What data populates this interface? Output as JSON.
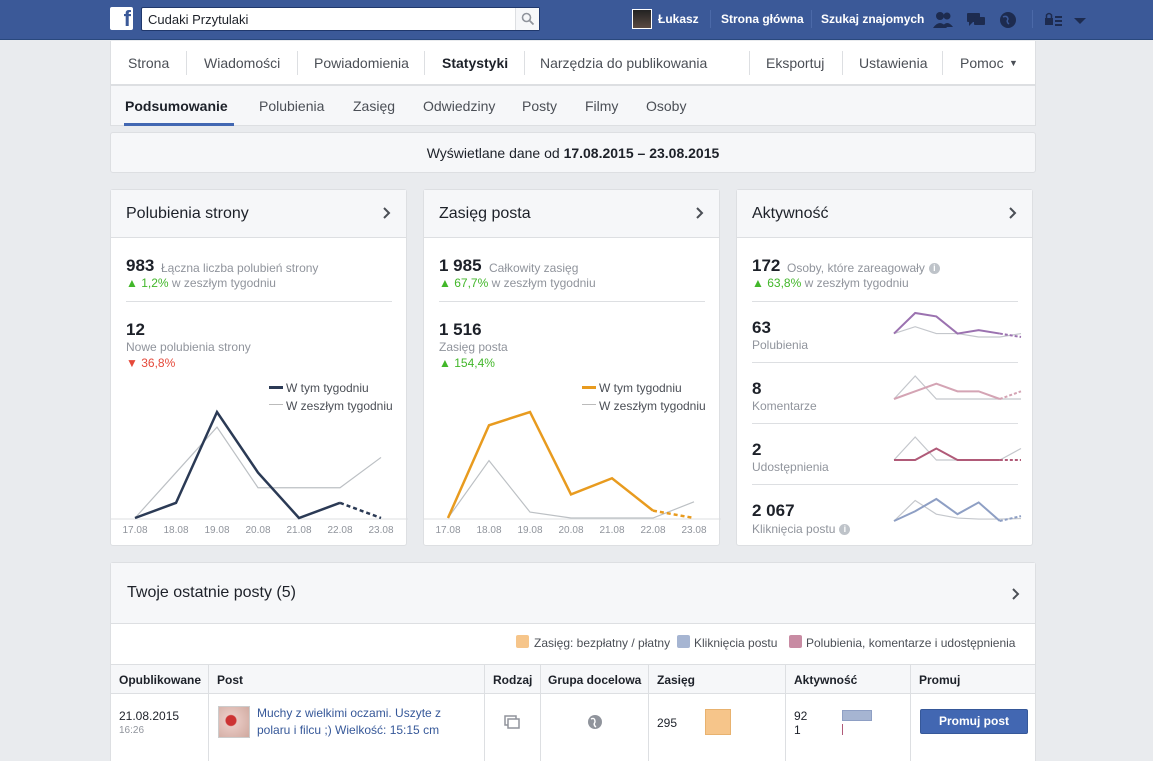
{
  "topbar": {
    "search_value": "Cudaki Przytulaki",
    "user_name": "Łukasz",
    "home_label": "Strona główna",
    "find_friends_label": "Szukaj znajomych"
  },
  "tabs_main": [
    "Strona",
    "Wiadomości",
    "Powiadomienia",
    "Statystyki",
    "Narzędzia do publikowania",
    "Eksportuj",
    "Ustawienia",
    "Pomoc"
  ],
  "tabs_sub": [
    "Podsumowanie",
    "Polubienia",
    "Zasięg",
    "Odwiedziny",
    "Posty",
    "Filmy",
    "Osoby"
  ],
  "date_range": {
    "prefix": "Wyświetlane dane od",
    "range": "17.08.2015 – 23.08.2015"
  },
  "likes_card": {
    "title": "Polubienia strony",
    "total": "983",
    "total_label": "Łączna liczba polubień strony",
    "total_change": "1,2%",
    "change_label": "w zeszłym tygodniu",
    "new_likes": "12",
    "new_likes_label": "Nowe polubienia strony",
    "new_change": "36,8%",
    "legend_this": "W tym tygodniu",
    "legend_last": "W zeszłym tygodniu",
    "color": "#2b3a55"
  },
  "reach_card": {
    "title": "Zasięg posta",
    "total": "1 985",
    "total_label": "Całkowity zasięg",
    "total_change": "67,7%",
    "change_label": "w zeszłym tygodniu",
    "post_reach": "1 516",
    "post_reach_label": "Zasięg posta",
    "post_change": "154,4%",
    "legend_this": "W tym tygodniu",
    "legend_last": "W zeszłym tygodniu",
    "color": "#e89b1f"
  },
  "activity_card": {
    "title": "Aktywność",
    "total": "172",
    "total_label": "Osoby, które zareagowały",
    "total_change": "63,8%",
    "change_label": "w zeszłym tygodniu",
    "metrics": [
      {
        "value": "63",
        "label": "Polubienia",
        "color": "#9b72b0"
      },
      {
        "value": "8",
        "label": "Komentarze",
        "color": "#d4a4b4"
      },
      {
        "value": "2",
        "label": "Udostępnienia",
        "color": "#b05a78"
      },
      {
        "value": "2 067",
        "label": "Kliknięcia postu",
        "color": "#8e9fc4"
      }
    ]
  },
  "chart_data": [
    {
      "type": "line",
      "x": [
        "17.08",
        "18.08",
        "19.08",
        "20.08",
        "21.08",
        "22.08",
        "23.08"
      ],
      "series": [
        {
          "name": "W tym tygodniu",
          "values": [
            0,
            1,
            7,
            3,
            0,
            1,
            0
          ]
        },
        {
          "name": "W zeszłym tygodniu",
          "values": [
            0,
            3,
            6,
            2,
            2,
            2,
            4
          ]
        }
      ]
    },
    {
      "type": "line",
      "x": [
        "17.08",
        "18.08",
        "19.08",
        "20.08",
        "21.08",
        "22.08",
        "23.08"
      ],
      "series": [
        {
          "name": "W tym tygodniu",
          "values": [
            0,
            630,
            720,
            160,
            270,
            50,
            0
          ]
        },
        {
          "name": "W zeszłym tygodniu",
          "values": [
            0,
            390,
            40,
            0,
            0,
            0,
            110
          ]
        }
      ]
    },
    {
      "type": "line",
      "series": [
        {
          "name": "Polubienia",
          "values": [
            1,
            7,
            6,
            1,
            2,
            1,
            0
          ]
        },
        {
          "name": "Polubienia (zeszły)",
          "values": [
            1,
            3,
            1,
            1,
            0,
            0,
            1
          ]
        },
        {
          "name": "Komentarze",
          "values": [
            0,
            1,
            2,
            1,
            1,
            0,
            1
          ]
        },
        {
          "name": "Komentarze (zeszły)",
          "values": [
            0,
            3,
            0,
            0,
            0,
            0,
            0
          ]
        },
        {
          "name": "Udostępnienia",
          "values": [
            0,
            0,
            1,
            0,
            0,
            0,
            0
          ]
        },
        {
          "name": "Udostępnienia (zeszły)",
          "values": [
            0,
            2,
            0,
            0,
            0,
            0,
            1
          ]
        },
        {
          "name": "Kliknięcia postu",
          "values": [
            0,
            200,
            450,
            140,
            380,
            0,
            100
          ]
        },
        {
          "name": "Kliknięcia postu (zeszły)",
          "values": [
            0,
            420,
            140,
            60,
            40,
            40,
            50
          ]
        }
      ]
    }
  ],
  "posts": {
    "title": "Twoje ostatnie posty (5)",
    "legend": [
      {
        "label": "Zasięg: bezpłatny / płatny",
        "color": "#f6c58a"
      },
      {
        "label": "Kliknięcia postu",
        "color": "#a6b5d2"
      },
      {
        "label": "Polubienia, komentarze i udostępnienia",
        "color": "#c88ba3"
      }
    ],
    "columns": [
      "Opublikowane",
      "Post",
      "Rodzaj",
      "Grupa docelowa",
      "Zasięg",
      "Aktywność",
      "Promuj"
    ],
    "rows": [
      {
        "date": "21.08.2015",
        "time": "16:26",
        "text": "Muchy z wielkimi oczami. Uszyte z polaru i filcu ;) Wielkość: 15:15 cm",
        "reach": "295",
        "clicks": "92",
        "engagement": "1",
        "promote": "Promuj post"
      }
    ]
  }
}
